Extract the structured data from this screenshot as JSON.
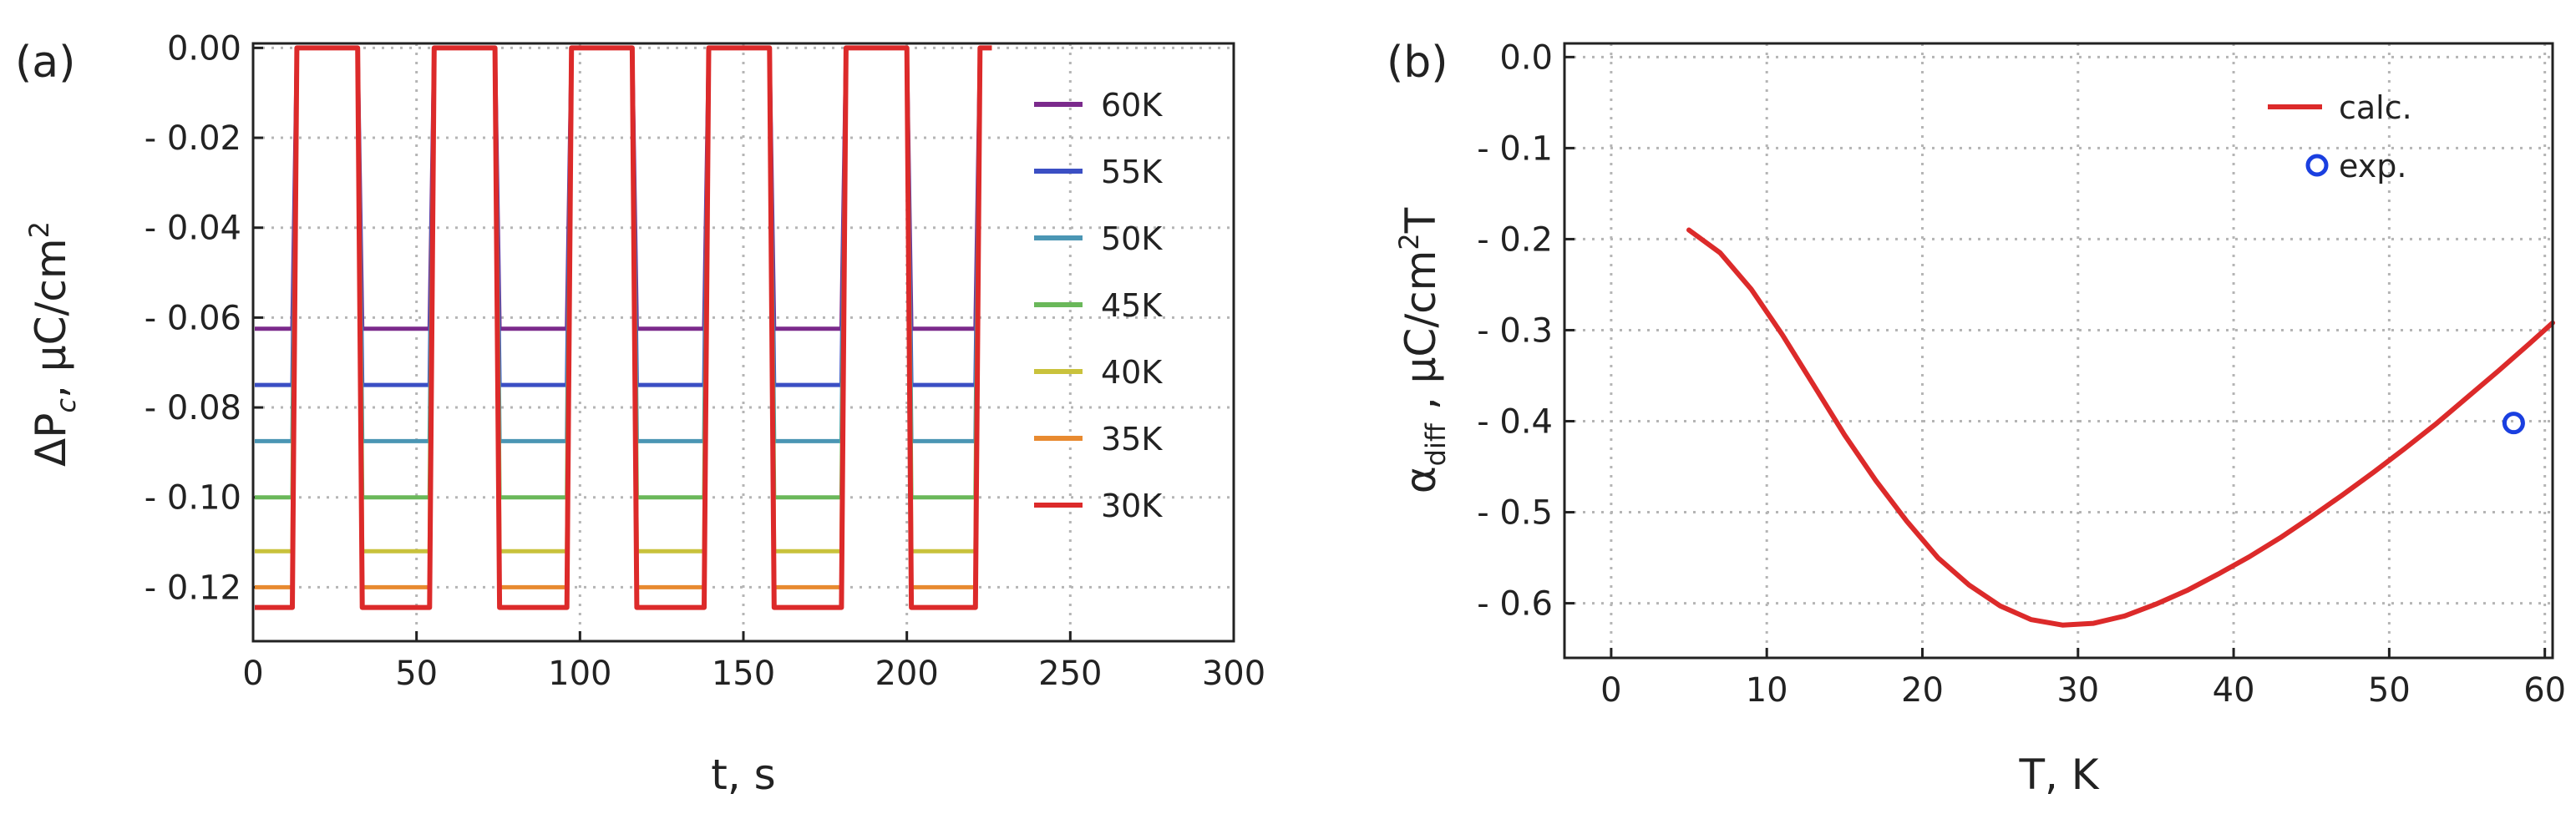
{
  "chart_data": [
    {
      "panel_label": "(a)",
      "type": "line",
      "xlabel": "t, s",
      "ylabel": {
        "main": "ΔP",
        "sub": "c",
        "unit": ", μC/cm",
        "sup": "2"
      },
      "xlim": [
        0,
        300
      ],
      "ylim": [
        -0.132,
        0.001
      ],
      "xticks": [
        0,
        50,
        100,
        150,
        200,
        250,
        300
      ],
      "xtick_labels": [
        "0",
        "50",
        "100",
        "150",
        "200",
        "250",
        "300"
      ],
      "yticks": [
        0.0,
        -0.02,
        -0.04,
        -0.06,
        -0.08,
        -0.1,
        -0.12
      ],
      "ytick_labels": [
        "0.00",
        "- 0.02",
        "- 0.04",
        "- 0.06",
        "- 0.08",
        "- 0.10",
        "- 0.12"
      ],
      "grid": true,
      "legend_position": "right",
      "switch_times": [
        12,
        32,
        54,
        74,
        96,
        116,
        138,
        158,
        180,
        200,
        221
      ],
      "series": [
        {
          "name": "60K",
          "color": "#7b2a8c",
          "low": -0.0625
        },
        {
          "name": "55K",
          "color": "#3b4fc4",
          "low": -0.075
        },
        {
          "name": "50K",
          "color": "#4b96b4",
          "low": -0.0875
        },
        {
          "name": "45K",
          "color": "#6ab85a",
          "low": -0.1
        },
        {
          "name": "40K",
          "color": "#c9c23c",
          "low": -0.112
        },
        {
          "name": "35K",
          "color": "#e88a30",
          "low": -0.12
        },
        {
          "name": "30K",
          "color": "#dc2a2a",
          "low": -0.1245
        }
      ]
    },
    {
      "panel_label": "(b)",
      "type": "line",
      "xlabel": "T, K",
      "ylabel": {
        "main": "α",
        "sub": "diff",
        "unit": " , μC/cm",
        "sup": "2",
        "tail": "T"
      },
      "xlim": [
        -3,
        60.5
      ],
      "ylim": [
        -0.66,
        0.015
      ],
      "xticks": [
        0,
        10,
        20,
        30,
        40,
        50,
        60
      ],
      "xtick_labels": [
        "0",
        "10",
        "20",
        "30",
        "40",
        "50",
        "60"
      ],
      "yticks": [
        0.0,
        -0.1,
        -0.2,
        -0.3,
        -0.4,
        -0.5,
        -0.6
      ],
      "ytick_labels": [
        "0.0",
        "- 0.1",
        "- 0.2",
        "- 0.3",
        "- 0.4",
        "- 0.5",
        "- 0.6"
      ],
      "grid": true,
      "legend_position": "top-right",
      "series": [
        {
          "name": "calc.",
          "kind": "line",
          "color": "#dc2a2a",
          "x": [
            5,
            7,
            9,
            11,
            13,
            15,
            17,
            19,
            21,
            23,
            25,
            27,
            29,
            31,
            33,
            35,
            37,
            39,
            41,
            43,
            45,
            47,
            49,
            51,
            53,
            55,
            57,
            59,
            60.5
          ],
          "y": [
            -0.19,
            -0.215,
            -0.255,
            -0.305,
            -0.36,
            -0.415,
            -0.465,
            -0.51,
            -0.55,
            -0.58,
            -0.603,
            -0.618,
            -0.624,
            -0.622,
            -0.614,
            -0.601,
            -0.586,
            -0.568,
            -0.549,
            -0.528,
            -0.505,
            -0.481,
            -0.456,
            -0.43,
            -0.403,
            -0.374,
            -0.345,
            -0.315,
            -0.292
          ]
        },
        {
          "name": "exp.",
          "kind": "scatter",
          "color": "#1a3fe0",
          "x": [
            58
          ],
          "y": [
            -0.402
          ]
        }
      ]
    }
  ]
}
